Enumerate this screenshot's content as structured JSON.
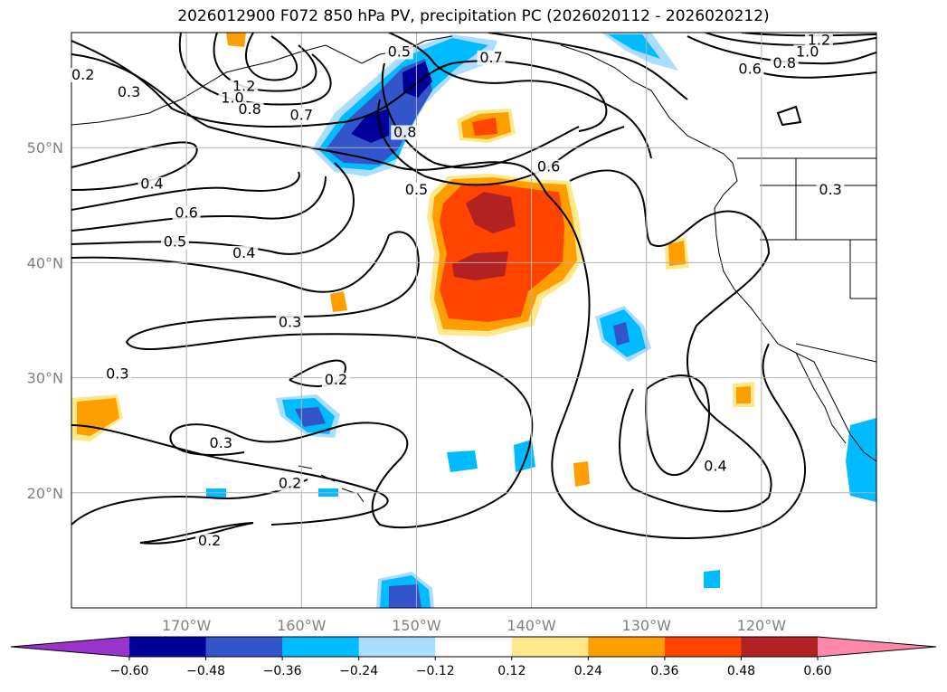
{
  "chart_data": {
    "type": "contour-map",
    "title": "2026012900 F072 850 hPa PV, precipitation PC (2026020112 - 2026020212)",
    "lon_ticks": [
      "170°W",
      "160°W",
      "150°W",
      "140°W",
      "130°W",
      "120°W"
    ],
    "lon_values": [
      -170,
      -160,
      -150,
      -140,
      -130,
      -120
    ],
    "lat_ticks": [
      "20°N",
      "30°N",
      "40°N",
      "50°N"
    ],
    "lat_values": [
      20,
      30,
      40,
      50
    ],
    "lon_range": [
      -180,
      -110
    ],
    "lat_range": [
      10,
      60
    ],
    "grid": true,
    "contour_labels": [
      {
        "text": "0.2",
        "lon": -179,
        "lat": 56
      },
      {
        "text": "0.3",
        "lon": -175,
        "lat": 54.5
      },
      {
        "text": "1.2",
        "lon": -165,
        "lat": 55
      },
      {
        "text": "1.0",
        "lon": -166,
        "lat": 54
      },
      {
        "text": "0.8",
        "lon": -164.5,
        "lat": 53
      },
      {
        "text": "0.7",
        "lon": -160,
        "lat": 52.5
      },
      {
        "text": "0.4",
        "lon": -173,
        "lat": 46.5
      },
      {
        "text": "0.6",
        "lon": -170,
        "lat": 44
      },
      {
        "text": "0.5",
        "lon": -171,
        "lat": 41.5
      },
      {
        "text": "0.4",
        "lon": -165,
        "lat": 40.5
      },
      {
        "text": "0.3",
        "lon": -161,
        "lat": 34.5
      },
      {
        "text": "0.3",
        "lon": -176,
        "lat": 30
      },
      {
        "text": "0.2",
        "lon": -157,
        "lat": 29.5
      },
      {
        "text": "0.3",
        "lon": -167,
        "lat": 24
      },
      {
        "text": "0.2",
        "lon": -161,
        "lat": 20.5
      },
      {
        "text": "0.2",
        "lon": -168,
        "lat": 15.5
      },
      {
        "text": "0.5",
        "lon": -151.5,
        "lat": 58
      },
      {
        "text": "0.7",
        "lon": -143.5,
        "lat": 57.5
      },
      {
        "text": "0.8",
        "lon": -151,
        "lat": 51
      },
      {
        "text": "0.5",
        "lon": -150,
        "lat": 46
      },
      {
        "text": "0.6",
        "lon": -138.5,
        "lat": 48
      },
      {
        "text": "1.2",
        "lon": -115,
        "lat": 59
      },
      {
        "text": "1.0",
        "lon": -116,
        "lat": 58
      },
      {
        "text": "0.8",
        "lon": -118,
        "lat": 57
      },
      {
        "text": "0.6",
        "lon": -121,
        "lat": 56.5
      },
      {
        "text": "0.3",
        "lon": -114,
        "lat": 46
      },
      {
        "text": "0.4",
        "lon": -124,
        "lat": 22
      }
    ],
    "colorbar": {
      "levels": [
        -0.6,
        -0.48,
        -0.36,
        -0.24,
        -0.12,
        0.12,
        0.24,
        0.36,
        0.48,
        0.6
      ],
      "labels": [
        "−0.60",
        "−0.48",
        "−0.36",
        "−0.24",
        "−0.12",
        "0.12",
        "0.24",
        "0.36",
        "0.48",
        "0.60"
      ],
      "colors": [
        "#9933cc",
        "#000099",
        "#3355cc",
        "#00bbff",
        "#aaddff",
        "#ffffff",
        "#ffe88a",
        "#ff9e00",
        "#ff4400",
        "#b22222",
        "#ff88aa"
      ],
      "extend": "both"
    },
    "shading_features": [
      {
        "value": -0.45,
        "lon": -152,
        "lat": 53,
        "color": "#3355cc"
      },
      {
        "value": 0.42,
        "lon": -143,
        "lat": 41,
        "color": "#ff4400"
      },
      {
        "value": 0.5,
        "lon": -142,
        "lat": 44,
        "color": "#b22222"
      },
      {
        "value": -0.3,
        "lon": -132,
        "lat": 34,
        "color": "#00bbff"
      }
    ]
  }
}
